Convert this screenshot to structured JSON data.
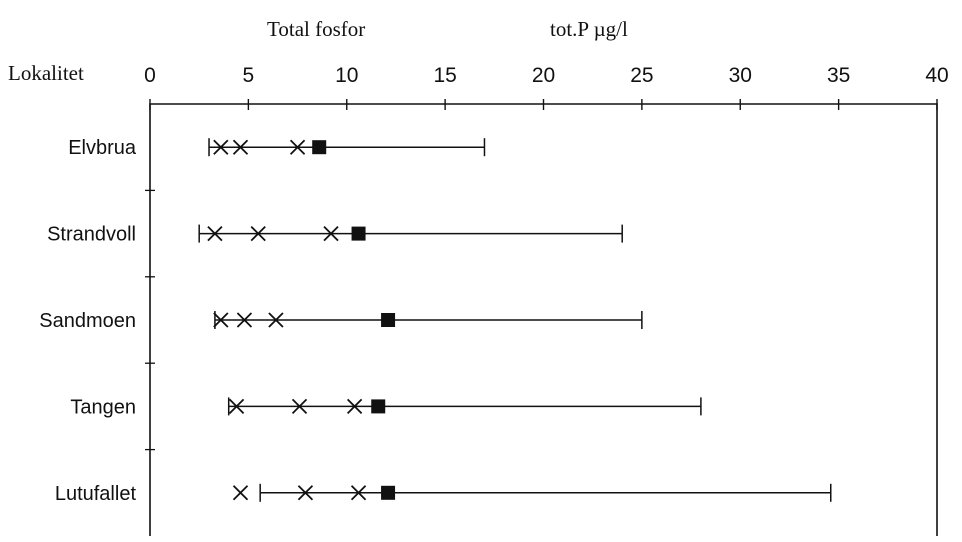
{
  "chart_data": {
    "type": "range-plot",
    "title": "Total fosfor",
    "unit_label": "tot.P µg/l",
    "ylabel": "Lokalitet",
    "xlim": [
      0,
      40
    ],
    "x_ticks": [
      0,
      5,
      10,
      15,
      20,
      25,
      30,
      35,
      40
    ],
    "categories": [
      "Elvbrua",
      "Strandvoll",
      "Sandmoen",
      "Tangen",
      "Lutufallet"
    ],
    "ranges": [
      {
        "name": "Elvbrua",
        "min": 3.0,
        "max": 17.0
      },
      {
        "name": "Strandvoll",
        "min": 2.5,
        "max": 24.0
      },
      {
        "name": "Sandmoen",
        "min": 3.3,
        "max": 25.0
      },
      {
        "name": "Tangen",
        "min": 4.0,
        "max": 28.0
      },
      {
        "name": "Lutufallet",
        "min": 5.6,
        "max": 34.6
      }
    ],
    "x_markers": [
      {
        "name": "Elvbrua",
        "values": [
          3.6,
          4.6,
          7.5
        ]
      },
      {
        "name": "Strandvoll",
        "values": [
          3.3,
          5.5,
          9.2
        ]
      },
      {
        "name": "Sandmoen",
        "values": [
          3.6,
          4.8,
          6.4
        ]
      },
      {
        "name": "Tangen",
        "values": [
          4.4,
          7.6,
          10.4
        ]
      },
      {
        "name": "Lutufallet",
        "values": [
          4.6,
          7.9,
          10.6
        ]
      }
    ],
    "mean": [
      {
        "name": "Elvbrua",
        "value": 8.6
      },
      {
        "name": "Strandvoll",
        "value": 10.6
      },
      {
        "name": "Sandmoen",
        "value": 12.1
      },
      {
        "name": "Tangen",
        "value": 11.6
      },
      {
        "name": "Lutufallet",
        "value": 12.1
      }
    ]
  }
}
